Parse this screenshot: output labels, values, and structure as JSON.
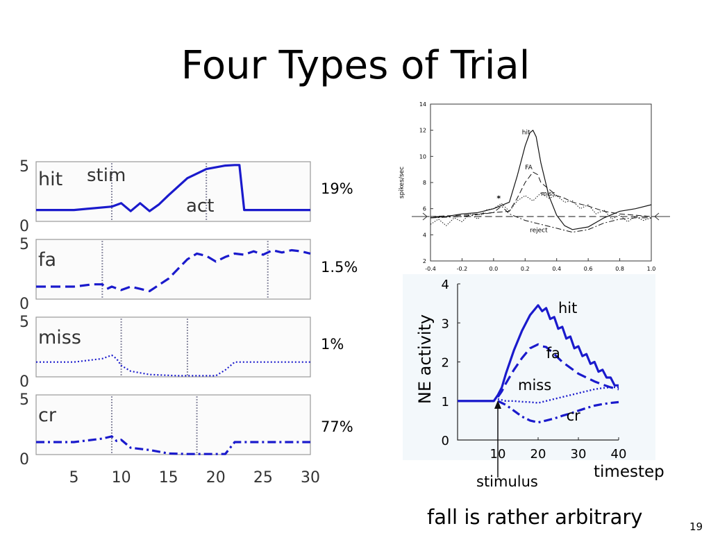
{
  "slide": {
    "title": "Four Types of Trial",
    "footer_note": "fall is rather arbitrary",
    "slide_number": "19",
    "percentages": [
      "19%",
      "1.5%",
      "1%",
      "77%"
    ]
  },
  "colors": {
    "series_blue": "#1a1acc",
    "text": "#000000"
  },
  "chart_data": [
    {
      "type": "line",
      "panel": "hit",
      "label": "hit",
      "annotations": [
        "stim",
        "act"
      ],
      "ylim": [
        0,
        5
      ],
      "yticks": [
        "0",
        "5"
      ],
      "xlim": [
        1,
        30
      ],
      "xticks": [
        "5",
        "10",
        "15",
        "20",
        "25",
        "30"
      ],
      "style": "solid",
      "markers": [
        9,
        19
      ],
      "x": [
        1,
        5,
        9,
        10,
        11,
        12,
        13,
        14,
        15,
        17,
        19,
        21,
        22,
        22.5,
        23,
        30
      ],
      "y": [
        1,
        1,
        1.3,
        1.6,
        0.9,
        1.6,
        0.9,
        1.5,
        2.3,
        3.8,
        4.6,
        4.9,
        4.95,
        4.95,
        1,
        1
      ]
    },
    {
      "type": "line",
      "panel": "fa",
      "label": "fa",
      "ylim": [
        0,
        5
      ],
      "yticks": [
        "0",
        "5"
      ],
      "xlim": [
        1,
        30
      ],
      "style": "dashed",
      "markers": [
        8,
        25.5
      ],
      "x": [
        1,
        5,
        7,
        8,
        8.5,
        9,
        10,
        11,
        12,
        13,
        15,
        17,
        18,
        19,
        20,
        21,
        22,
        23,
        24,
        25,
        26,
        27,
        28,
        29,
        30
      ],
      "y": [
        1.1,
        1.1,
        1.3,
        1.3,
        0.9,
        1.1,
        0.8,
        1.1,
        0.9,
        0.7,
        1.8,
        3.5,
        4.0,
        3.8,
        3.3,
        3.7,
        4.0,
        3.9,
        4.2,
        3.9,
        4.3,
        4.1,
        4.3,
        4.2,
        4.0
      ]
    },
    {
      "type": "line",
      "panel": "miss",
      "label": "miss",
      "ylim": [
        0,
        5
      ],
      "yticks": [
        "0",
        "5"
      ],
      "xlim": [
        1,
        30
      ],
      "style": "dotted",
      "markers": [
        10,
        17
      ],
      "x": [
        1,
        5,
        8,
        9,
        9.5,
        10,
        11,
        13,
        16,
        20,
        21,
        22,
        30
      ],
      "y": [
        1.3,
        1.3,
        1.6,
        1.9,
        1.6,
        1.0,
        0.5,
        0.2,
        0.1,
        0.1,
        0.6,
        1.3,
        1.3
      ]
    },
    {
      "type": "line",
      "panel": "cr",
      "label": "cr",
      "ylim": [
        0,
        5
      ],
      "yticks": [
        "0",
        "5"
      ],
      "xlim": [
        1,
        30
      ],
      "xticks": [
        "5",
        "10",
        "15",
        "20",
        "25",
        "30"
      ],
      "style": "dashdot",
      "markers": [
        9,
        18
      ],
      "x": [
        1,
        5,
        8,
        9,
        9.5,
        10,
        11,
        13,
        15,
        17,
        21,
        22,
        30
      ],
      "y": [
        1.1,
        1.1,
        1.4,
        1.6,
        1.2,
        1.3,
        0.6,
        0.4,
        0.1,
        0.05,
        0.05,
        1.1,
        1.1
      ]
    },
    {
      "type": "line",
      "ylabel": "spikes/sec",
      "xlim": [
        -0.4,
        1.0
      ],
      "ylim": [
        2,
        14
      ],
      "xticks": [
        "-0.4",
        "-0.2",
        "0.0",
        "0.2",
        "0.4",
        "0.6",
        "0.8",
        "1.0"
      ],
      "yticks": [
        "2",
        "4",
        "6",
        "8",
        "10",
        "12",
        "14"
      ],
      "annotations": [
        "*"
      ],
      "series": [
        {
          "name": "hit",
          "style": "solid",
          "x": [
            -0.4,
            -0.3,
            -0.2,
            -0.1,
            0.0,
            0.1,
            0.15,
            0.2,
            0.23,
            0.25,
            0.27,
            0.3,
            0.35,
            0.4,
            0.45,
            0.5,
            0.6,
            0.7,
            0.8,
            0.9,
            1.0
          ],
          "y": [
            5.3,
            5.4,
            5.6,
            5.7,
            6.0,
            6.5,
            8.5,
            10.8,
            11.8,
            12.0,
            11.5,
            9.5,
            7.0,
            5.5,
            4.7,
            4.4,
            4.6,
            5.3,
            5.8,
            6.0,
            6.3
          ]
        },
        {
          "name": "FA",
          "style": "dashed",
          "x": [
            -0.4,
            -0.2,
            0.0,
            0.1,
            0.15,
            0.2,
            0.25,
            0.28,
            0.3,
            0.35,
            0.4,
            0.45,
            0.5,
            0.6,
            0.7,
            0.8,
            0.9,
            1.0
          ],
          "y": [
            5.4,
            5.5,
            5.7,
            5.8,
            6.8,
            8.0,
            8.8,
            8.6,
            8.0,
            7.5,
            7.0,
            6.8,
            6.5,
            6.2,
            5.8,
            5.6,
            5.5,
            5.4
          ]
        },
        {
          "name": "miss",
          "style": "dotted",
          "x": [
            -0.4,
            -0.35,
            -0.3,
            -0.25,
            -0.2,
            -0.15,
            -0.1,
            -0.05,
            0.0,
            0.05,
            0.1,
            0.15,
            0.2,
            0.25,
            0.3,
            0.35,
            0.4,
            0.45,
            0.5,
            0.55,
            0.6,
            0.65,
            0.7,
            0.75,
            0.8,
            0.85,
            0.9,
            0.95,
            1.0
          ],
          "y": [
            4.8,
            5.2,
            4.7,
            5.3,
            5.0,
            5.6,
            5.2,
            5.9,
            6.0,
            6.4,
            5.8,
            6.6,
            7.0,
            6.6,
            7.2,
            6.8,
            7.0,
            6.5,
            6.6,
            6.0,
            6.3,
            5.6,
            5.9,
            5.2,
            5.5,
            5.0,
            5.4,
            5.1,
            5.3
          ]
        },
        {
          "name": "reject",
          "style": "dashdot",
          "x": [
            -0.4,
            -0.2,
            0.0,
            0.05,
            0.1,
            0.2,
            0.3,
            0.4,
            0.5,
            0.6,
            0.7,
            0.8,
            0.9,
            1.0
          ],
          "y": [
            5.3,
            5.4,
            5.7,
            6.2,
            5.6,
            5.1,
            4.8,
            4.5,
            4.2,
            4.4,
            4.9,
            5.2,
            5.3,
            5.3
          ]
        },
        {
          "name": "baseline",
          "style": "longdash",
          "x": [
            -0.45,
            1.05
          ],
          "y": [
            5.4,
            5.4
          ]
        }
      ]
    },
    {
      "type": "line",
      "ylabel": "NE activity",
      "xlabel": "timestep",
      "annotations": [
        "stimulus"
      ],
      "xlim": [
        0,
        40
      ],
      "ylim": [
        0,
        4
      ],
      "xticks": [
        "10",
        "20",
        "30",
        "40"
      ],
      "yticks": [
        "0",
        "1",
        "2",
        "3",
        "4"
      ],
      "series": [
        {
          "name": "hit",
          "style": "solid",
          "x": [
            0,
            9,
            10,
            11,
            12,
            14,
            16,
            18,
            20,
            21,
            22,
            23,
            24,
            25,
            26,
            27,
            28,
            29,
            30,
            31,
            32,
            33,
            34,
            35,
            36,
            37,
            38,
            39,
            40
          ],
          "y": [
            1,
            1,
            1.15,
            1.35,
            1.7,
            2.3,
            2.8,
            3.2,
            3.45,
            3.3,
            3.38,
            3.1,
            3.15,
            2.85,
            2.9,
            2.6,
            2.65,
            2.35,
            2.4,
            2.15,
            2.2,
            1.95,
            2.0,
            1.75,
            1.8,
            1.6,
            1.6,
            1.4,
            1.4
          ]
        },
        {
          "name": "fa",
          "style": "dashed",
          "x": [
            10,
            11,
            12,
            14,
            16,
            18,
            20,
            21,
            22,
            24,
            26,
            28,
            30,
            32,
            34,
            36,
            38,
            40
          ],
          "y": [
            1.1,
            1.25,
            1.45,
            1.8,
            2.1,
            2.35,
            2.45,
            2.4,
            2.38,
            2.2,
            2.0,
            1.85,
            1.7,
            1.6,
            1.5,
            1.42,
            1.35,
            1.3
          ]
        },
        {
          "name": "miss",
          "style": "dotted",
          "x": [
            10,
            12,
            14,
            16,
            18,
            20,
            22,
            24,
            26,
            28,
            30,
            32,
            34,
            36,
            38,
            40
          ],
          "y": [
            1.05,
            1.0,
            1.0,
            0.98,
            0.97,
            0.95,
            1.0,
            1.05,
            1.1,
            1.15,
            1.2,
            1.25,
            1.3,
            1.33,
            1.35,
            1.35
          ]
        },
        {
          "name": "cr",
          "style": "dashdot",
          "x": [
            10,
            12,
            14,
            16,
            18,
            20,
            22,
            24,
            26,
            28,
            30,
            32,
            34,
            36,
            38,
            40
          ],
          "y": [
            1.0,
            0.9,
            0.75,
            0.6,
            0.5,
            0.45,
            0.5,
            0.55,
            0.62,
            0.68,
            0.75,
            0.82,
            0.88,
            0.92,
            0.95,
            0.97
          ]
        }
      ]
    }
  ]
}
